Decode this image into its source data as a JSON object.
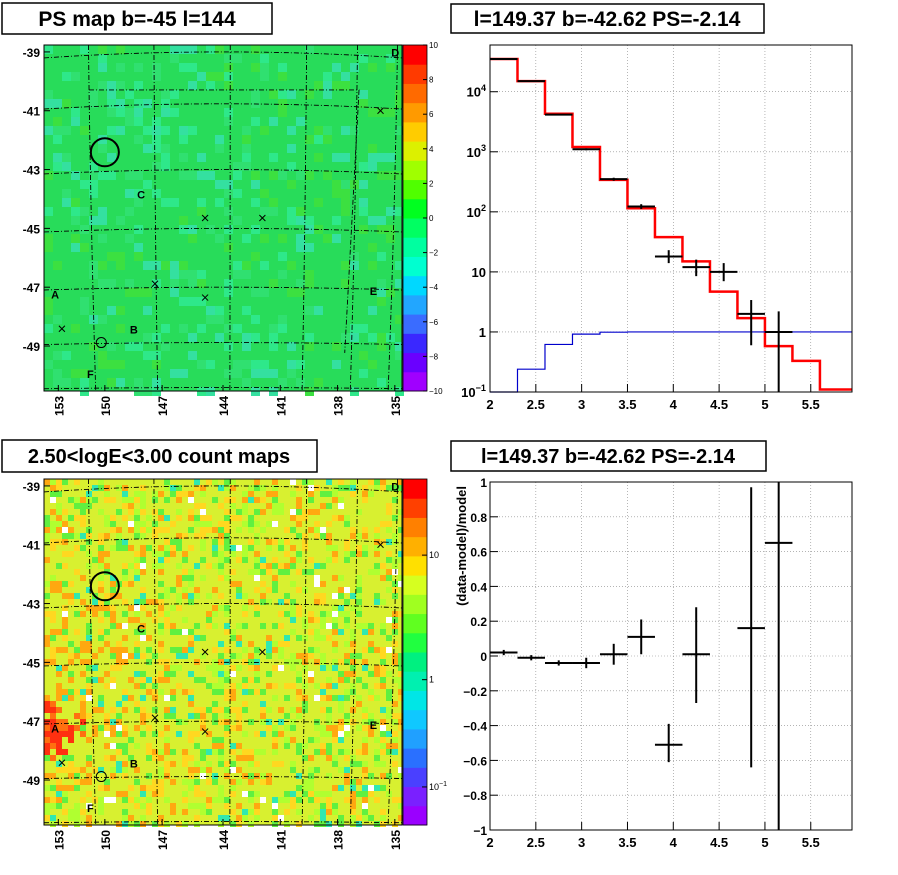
{
  "panels": {
    "ps_map": {
      "title": "PS map b=-45 l=144",
      "colorbar_colors": [
        "#a000ff",
        "#6a00ff",
        "#3a28ff",
        "#3a6cff",
        "#22a6ff",
        "#00d8ff",
        "#00ffd0",
        "#00ffa0",
        "#00ff62",
        "#00ff20",
        "#50ff00",
        "#a0ff00",
        "#dcf000",
        "#ffcc00",
        "#ff9a00",
        "#ff6a00",
        "#ff3a00",
        "#ff0000"
      ],
      "field_color": "#28dc5a"
    },
    "count_map": {
      "title": "2.50<logE<3.00 count maps",
      "colorbar_colors": [
        "#9a00ff",
        "#7a20ff",
        "#4a40ff",
        "#2a70ff",
        "#20a0ff",
        "#10c8ff",
        "#00e6e6",
        "#00f0b0",
        "#00f080",
        "#20ff40",
        "#60ff20",
        "#a0ff20",
        "#d6ff20",
        "#ffe000",
        "#ffb000",
        "#ff8000",
        "#ff4000",
        "#ff0000"
      ],
      "field_color": "#d8f030"
    },
    "spectrum": {
      "title": "l=149.37 b=-42.62 PS=-2.14"
    },
    "residual": {
      "title": "l=149.37 b=-42.62 PS=-2.14"
    }
  },
  "chart_data": [
    {
      "type": "heatmap",
      "title": "PS map b=-45 l=144",
      "x_ticks": [
        "153",
        "150",
        "147",
        "144",
        "141",
        "138",
        "135"
      ],
      "y_ticks": [
        "-39",
        "-41",
        "-43",
        "-45",
        "-47",
        "-49"
      ],
      "colorbar_ticks": [
        "10",
        "8",
        "6",
        "4",
        "2",
        "0",
        "−2",
        "−4",
        "−6",
        "−8",
        "−10"
      ],
      "colorbar_range": [
        -10,
        10
      ],
      "source_labels": [
        "A",
        "B",
        "C",
        "D",
        "E",
        "F"
      ],
      "source_marker": "circle",
      "point_markers": "x"
    },
    {
      "type": "line",
      "title": "l=149.37 b=-42.62 PS=-2.14",
      "x_range": [
        2.0,
        5.95
      ],
      "y_scale": "log",
      "y_range": [
        0.1,
        60000
      ],
      "x_ticks": [
        "2",
        "2.5",
        "3",
        "3.5",
        "4",
        "4.5",
        "5",
        "5.5"
      ],
      "y_ticks": [
        {
          "value": 0.1,
          "base": "10",
          "exp": "−1"
        },
        {
          "value": 1,
          "base": "1",
          "exp": ""
        },
        {
          "value": 10,
          "base": "10",
          "exp": ""
        },
        {
          "value": 100,
          "base": "10",
          "exp": "2"
        },
        {
          "value": 1000,
          "base": "10",
          "exp": "3"
        },
        {
          "value": 10000,
          "base": "10",
          "exp": "4"
        }
      ],
      "grid": true,
      "series": [
        {
          "color": "#ff0000",
          "style": "step",
          "edges": [
            2.0,
            2.3,
            2.6,
            2.9,
            3.2,
            3.5,
            3.8,
            4.1,
            4.4,
            4.7,
            5.0,
            5.3,
            5.6,
            5.95
          ],
          "values": [
            35000,
            15000,
            4300,
            1200,
            340,
            115,
            38,
            15,
            4.7,
            1.7,
            0.58,
            0.33,
            0.11
          ]
        },
        {
          "color": "#0000cc",
          "style": "step",
          "edges": [
            2.0,
            2.3,
            2.6,
            2.9,
            3.2,
            3.5,
            3.8,
            4.1,
            4.4,
            4.7,
            5.0,
            5.3,
            5.6,
            5.95
          ],
          "values": [
            0.05,
            0.24,
            0.62,
            0.92,
            0.99,
            1.0,
            1.0,
            1.0,
            1.0,
            1.0,
            1.0,
            1.0,
            1.0
          ]
        },
        {
          "color": "#000000",
          "style": "errorbar",
          "points": [
            {
              "x": 2.15,
              "xerr": 0.15,
              "y": 35000,
              "ylo": 34500,
              "yhi": 35500
            },
            {
              "x": 2.45,
              "xerr": 0.15,
              "y": 15000,
              "ylo": 14700,
              "yhi": 15300
            },
            {
              "x": 2.75,
              "xerr": 0.15,
              "y": 4150,
              "ylo": 4050,
              "yhi": 4250
            },
            {
              "x": 3.05,
              "xerr": 0.15,
              "y": 1100,
              "ylo": 1060,
              "yhi": 1140
            },
            {
              "x": 3.35,
              "xerr": 0.15,
              "y": 350,
              "ylo": 330,
              "yhi": 370
            },
            {
              "x": 3.65,
              "xerr": 0.15,
              "y": 123,
              "ylo": 112,
              "yhi": 134
            },
            {
              "x": 3.95,
              "xerr": 0.15,
              "y": 18,
              "ylo": 14,
              "yhi": 23
            },
            {
              "x": 4.25,
              "xerr": 0.15,
              "y": 12,
              "ylo": 8.5,
              "yhi": 16
            },
            {
              "x": 4.55,
              "xerr": 0.15,
              "y": 10,
              "ylo": 7,
              "yhi": 14
            },
            {
              "x": 4.85,
              "xerr": 0.15,
              "y": 2,
              "ylo": 0.6,
              "yhi": 3.4
            },
            {
              "x": 5.15,
              "xerr": 0.15,
              "y": 1,
              "ylo": 0.1,
              "yhi": 2.2
            }
          ]
        }
      ]
    },
    {
      "type": "heatmap",
      "title": "2.50<logE<3.00 count maps",
      "x_ticks": [
        "153",
        "150",
        "147",
        "144",
        "141",
        "138",
        "135"
      ],
      "y_ticks": [
        "-39",
        "-41",
        "-43",
        "-45",
        "-47",
        "-49"
      ],
      "colorbar_scale": "log",
      "colorbar_ticks": [
        {
          "base": "10",
          "exp": ""
        },
        {
          "base": "1",
          "exp": ""
        },
        {
          "base": "10",
          "exp": "−1"
        }
      ],
      "source_labels": [
        "A",
        "B",
        "C",
        "D",
        "E",
        "F"
      ],
      "source_marker": "circle",
      "point_markers": "x"
    },
    {
      "type": "scatter",
      "title": "l=149.37 b=-42.62 PS=-2.14",
      "ylabel": "(data-model)/model",
      "x_range": [
        2.0,
        5.95
      ],
      "y_range": [
        -1.0,
        1.0
      ],
      "x_ticks": [
        "2",
        "2.5",
        "3",
        "3.5",
        "4",
        "4.5",
        "5",
        "5.5"
      ],
      "y_ticks": [
        "−1",
        "−0.8",
        "−0.6",
        "−0.4",
        "−0.2",
        "0",
        "0.2",
        "0.4",
        "0.6",
        "0.8",
        "1"
      ],
      "grid": true,
      "points": [
        {
          "x": 2.15,
          "xerr": 0.15,
          "y": 0.02,
          "ylo": 0.005,
          "yhi": 0.035
        },
        {
          "x": 2.45,
          "xerr": 0.15,
          "y": -0.01,
          "ylo": -0.025,
          "yhi": 0.005
        },
        {
          "x": 2.75,
          "xerr": 0.15,
          "y": -0.04,
          "ylo": -0.055,
          "yhi": -0.025
        },
        {
          "x": 3.05,
          "xerr": 0.15,
          "y": -0.04,
          "ylo": -0.07,
          "yhi": -0.01
        },
        {
          "x": 3.35,
          "xerr": 0.15,
          "y": 0.01,
          "ylo": -0.05,
          "yhi": 0.07
        },
        {
          "x": 3.65,
          "xerr": 0.15,
          "y": 0.11,
          "ylo": 0.01,
          "yhi": 0.21
        },
        {
          "x": 3.95,
          "xerr": 0.15,
          "y": -0.51,
          "ylo": -0.61,
          "yhi": -0.39
        },
        {
          "x": 4.25,
          "xerr": 0.15,
          "y": 0.01,
          "ylo": -0.27,
          "yhi": 0.28
        },
        {
          "x": 4.85,
          "xerr": 0.15,
          "y": 0.16,
          "ylo": -0.64,
          "yhi": 0.97
        },
        {
          "x": 5.15,
          "xerr": 0.15,
          "y": 0.65,
          "ylo": -1.0,
          "yhi": 1.0
        }
      ]
    }
  ]
}
